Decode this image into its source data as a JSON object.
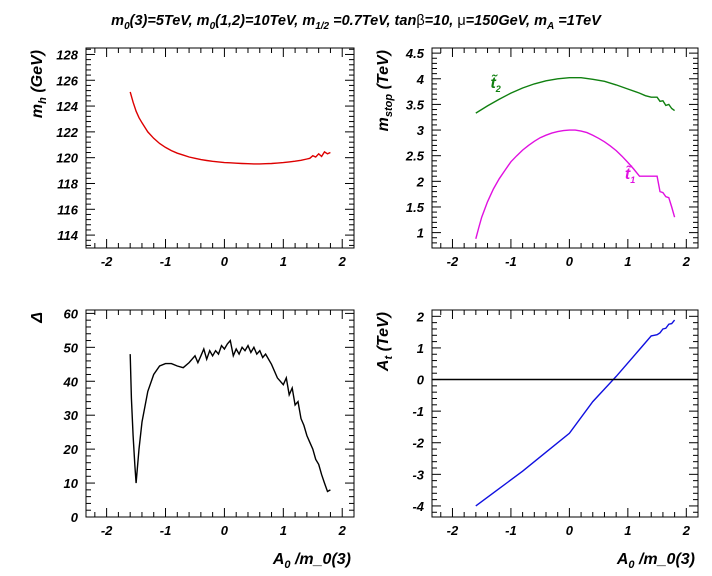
{
  "title_parts": [
    "m",
    "0",
    "(3)=5TeV, m",
    "0",
    "(1,2)=10TeV, m",
    "1/2",
    " =0.7TeV, tan",
    "β",
    "=10, ",
    "μ",
    "=150GeV, m",
    "A",
    " =1TeV"
  ],
  "chart_data": [
    {
      "type": "line",
      "panel": "mh",
      "ylabel": "m_h (GeV)",
      "xlabel": "",
      "xlim": [
        -2.35,
        2.2
      ],
      "ylim": [
        113,
        128.5
      ],
      "xticks": [
        -2,
        -1,
        0,
        1,
        2
      ],
      "yticks": [
        114,
        116,
        118,
        120,
        122,
        124,
        126,
        128
      ],
      "series": [
        {
          "color": "#dd0000",
          "x": [
            -1.6,
            -1.55,
            -1.5,
            -1.45,
            -1.4,
            -1.3,
            -1.2,
            -1.1,
            -1.0,
            -0.9,
            -0.8,
            -0.7,
            -0.6,
            -0.5,
            -0.4,
            -0.3,
            -0.2,
            -0.1,
            0.0,
            0.1,
            0.2,
            0.3,
            0.4,
            0.5,
            0.6,
            0.7,
            0.8,
            0.9,
            1.0,
            1.1,
            1.2,
            1.3,
            1.4,
            1.45,
            1.5,
            1.55,
            1.6,
            1.65,
            1.7,
            1.75,
            1.8
          ],
          "y": [
            125.1,
            124.3,
            123.6,
            123.1,
            122.7,
            122.0,
            121.5,
            121.1,
            120.8,
            120.55,
            120.35,
            120.2,
            120.05,
            119.95,
            119.85,
            119.78,
            119.72,
            119.67,
            119.62,
            119.6,
            119.57,
            119.55,
            119.53,
            119.52,
            119.52,
            119.53,
            119.55,
            119.58,
            119.62,
            119.67,
            119.73,
            119.8,
            119.9,
            119.95,
            120.15,
            120.05,
            120.3,
            120.1,
            120.45,
            120.3,
            120.4
          ]
        }
      ]
    },
    {
      "type": "line",
      "panel": "mstop",
      "ylabel": "m_stop (TeV)",
      "xlabel": "",
      "xlim": [
        -2.35,
        2.2
      ],
      "ylim": [
        0.7,
        4.6
      ],
      "xticks": [
        -2,
        -1,
        0,
        1,
        2
      ],
      "yticks": [
        1,
        1.5,
        2,
        2.5,
        3,
        3.5,
        4,
        4.5
      ],
      "yticklabels": [
        "1",
        "1.5",
        "2",
        "2.5",
        "3",
        "3.5",
        "4",
        "4.5"
      ],
      "series": [
        {
          "name": "t̃2",
          "color": "#108010",
          "x": [
            -1.6,
            -1.4,
            -1.2,
            -1.0,
            -0.8,
            -0.6,
            -0.4,
            -0.2,
            0.0,
            0.2,
            0.4,
            0.6,
            0.8,
            1.0,
            1.2,
            1.3,
            1.4,
            1.5,
            1.55,
            1.6,
            1.65,
            1.7,
            1.75,
            1.8
          ],
          "y": [
            3.33,
            3.47,
            3.6,
            3.72,
            3.82,
            3.9,
            3.96,
            4.0,
            4.02,
            4.02,
            3.99,
            3.95,
            3.88,
            3.8,
            3.72,
            3.67,
            3.64,
            3.64,
            3.56,
            3.57,
            3.48,
            3.5,
            3.42,
            3.38
          ]
        },
        {
          "name": "t̃1",
          "color": "#e010e0",
          "x": [
            -1.6,
            -1.55,
            -1.5,
            -1.4,
            -1.3,
            -1.2,
            -1.1,
            -1.0,
            -0.9,
            -0.8,
            -0.7,
            -0.6,
            -0.5,
            -0.4,
            -0.3,
            -0.2,
            -0.1,
            0.0,
            0.1,
            0.2,
            0.3,
            0.4,
            0.5,
            0.6,
            0.7,
            0.8,
            0.9,
            1.0,
            1.1,
            1.2,
            1.3,
            1.4,
            1.5,
            1.55,
            1.6,
            1.65,
            1.7,
            1.75,
            1.8
          ],
          "y": [
            0.88,
            1.1,
            1.3,
            1.6,
            1.85,
            2.05,
            2.22,
            2.38,
            2.5,
            2.61,
            2.7,
            2.78,
            2.85,
            2.9,
            2.94,
            2.97,
            2.99,
            3.0,
            3.0,
            2.98,
            2.95,
            2.9,
            2.84,
            2.77,
            2.69,
            2.6,
            2.49,
            2.37,
            2.24,
            2.1,
            2.1,
            2.1,
            2.1,
            1.8,
            1.78,
            1.7,
            1.68,
            1.5,
            1.3
          ]
        }
      ]
    },
    {
      "type": "line",
      "panel": "delta",
      "ylabel": "Δ",
      "xlabel": "A_0 /m_0(3)",
      "xlim": [
        -2.35,
        2.2
      ],
      "ylim": [
        0,
        61
      ],
      "xticks": [
        -2,
        -1,
        0,
        1,
        2
      ],
      "yticks": [
        0,
        10,
        20,
        30,
        40,
        50,
        60
      ],
      "series": [
        {
          "color": "#000000",
          "x": [
            -1.6,
            -1.58,
            -1.55,
            -1.52,
            -1.5,
            -1.45,
            -1.4,
            -1.3,
            -1.2,
            -1.1,
            -1.0,
            -0.9,
            -0.8,
            -0.7,
            -0.6,
            -0.5,
            -0.45,
            -0.4,
            -0.35,
            -0.3,
            -0.25,
            -0.2,
            -0.15,
            -0.1,
            -0.05,
            0.0,
            0.05,
            0.1,
            0.15,
            0.2,
            0.25,
            0.3,
            0.35,
            0.4,
            0.45,
            0.5,
            0.55,
            0.6,
            0.65,
            0.7,
            0.8,
            0.9,
            1.0,
            1.05,
            1.1,
            1.15,
            1.2,
            1.25,
            1.3,
            1.35,
            1.4,
            1.45,
            1.5,
            1.55,
            1.6,
            1.65,
            1.7,
            1.75,
            1.8
          ],
          "y": [
            48,
            35,
            24,
            15,
            10,
            20,
            28,
            37,
            42,
            44.5,
            45.2,
            45.2,
            44.5,
            44,
            45.5,
            47.5,
            45.5,
            47.5,
            49.5,
            46.5,
            49,
            47.5,
            49,
            48,
            50.5,
            49.5,
            51,
            52,
            47.5,
            49.5,
            48,
            50,
            49,
            50.5,
            48.5,
            50,
            48,
            49,
            47,
            48,
            45,
            41,
            39,
            41,
            36,
            38,
            33,
            34,
            29,
            27,
            24,
            22,
            20,
            17,
            15.5,
            12.5,
            10,
            7.5,
            8
          ]
        }
      ]
    },
    {
      "type": "line",
      "panel": "At",
      "ylabel": "A_t (TeV)",
      "xlabel": "A_0 /m_0(3)",
      "xlim": [
        -2.35,
        2.2
      ],
      "ylim": [
        -4.35,
        2.2
      ],
      "xticks": [
        -2,
        -1,
        0,
        1,
        2
      ],
      "yticks": [
        -4,
        -3,
        -2,
        -1,
        0,
        1,
        2
      ],
      "series": [
        {
          "color": "#1010e0",
          "x": [
            -1.6,
            -1.2,
            -0.8,
            -0.4,
            0.0,
            0.4,
            0.8,
            1.2,
            1.4,
            1.45,
            1.5,
            1.55,
            1.6,
            1.65,
            1.7,
            1.75,
            1.8
          ],
          "y": [
            -4.0,
            -3.45,
            -2.9,
            -2.3,
            -1.7,
            -0.7,
            0.1,
            0.95,
            1.38,
            1.4,
            1.42,
            1.48,
            1.6,
            1.62,
            1.75,
            1.77,
            1.88
          ]
        },
        {
          "color": "#000000",
          "x": [
            -2.35,
            2.2
          ],
          "y": [
            0,
            0
          ]
        }
      ]
    }
  ]
}
